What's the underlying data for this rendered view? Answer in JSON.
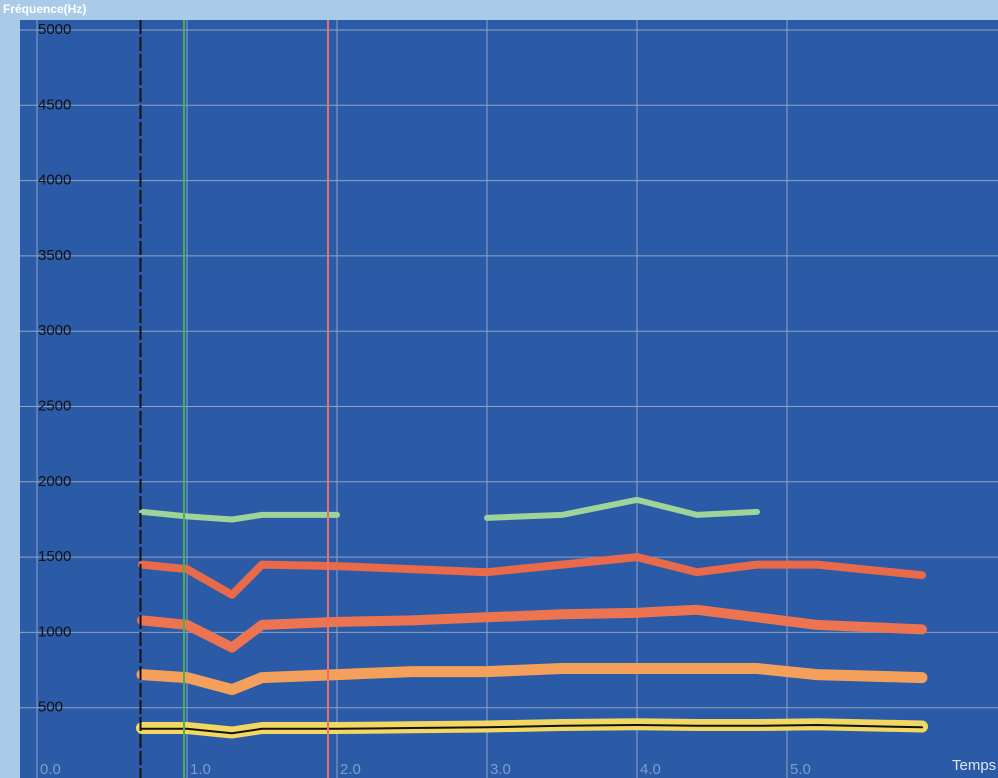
{
  "chart_data": {
    "type": "spectrogram",
    "title": "Fréquence(Hz)",
    "x_label": "Temps",
    "background": "#2b5ba7",
    "grid": true,
    "xlim": [
      0,
      6.4
    ],
    "ylim": [
      0,
      5000
    ],
    "xticks": [
      {
        "value": 0,
        "label": "0.0"
      },
      {
        "value": 1,
        "label": "1.0"
      },
      {
        "value": 2,
        "label": "2.0"
      },
      {
        "value": 3,
        "label": "3.0"
      },
      {
        "value": 4,
        "label": "4.0"
      },
      {
        "value": 5,
        "label": "5.0"
      }
    ],
    "yticks": [
      500,
      1000,
      1500,
      2000,
      2500,
      3000,
      3500,
      4000,
      4500,
      5000
    ],
    "cursors": [
      {
        "x": 0.69,
        "color": "#111111"
      },
      {
        "x": 0.98,
        "color": "#4caf50"
      },
      {
        "x": 1.94,
        "color": "#e8706a"
      }
    ],
    "x": [
      0.7,
      1.0,
      1.3,
      1.5,
      2.0,
      2.5,
      3.0,
      3.5,
      4.0,
      4.4,
      4.8,
      5.2,
      5.9
    ],
    "series": [
      {
        "color": "#9ed49a",
        "width": 6,
        "values": [
          1800,
          1770,
          1750,
          1780,
          1780,
          null,
          1760,
          1780,
          1880,
          1780,
          1800,
          null,
          null
        ]
      },
      {
        "color": "#e86a4a",
        "width": 8,
        "values": [
          1450,
          1420,
          1250,
          1450,
          1440,
          1420,
          1400,
          1450,
          1500,
          1400,
          1450,
          1450,
          1380
        ]
      },
      {
        "color": "#ec7450",
        "width": 10,
        "values": [
          1080,
          1050,
          900,
          1050,
          1070,
          1080,
          1100,
          1120,
          1130,
          1150,
          1100,
          1050,
          1020
        ]
      },
      {
        "color": "#f4a05a",
        "width": 11,
        "values": [
          720,
          700,
          620,
          700,
          720,
          740,
          740,
          760,
          760,
          760,
          760,
          720,
          700
        ]
      },
      {
        "color": "#f2d860",
        "width": 12,
        "values": [
          365,
          365,
          335,
          365,
          365,
          370,
          375,
          385,
          390,
          385,
          385,
          390,
          375
        ]
      },
      {
        "color": "#111111",
        "width": 2,
        "values": [
          360,
          360,
          330,
          360,
          360,
          365,
          370,
          380,
          385,
          380,
          380,
          385,
          370
        ]
      }
    ]
  }
}
